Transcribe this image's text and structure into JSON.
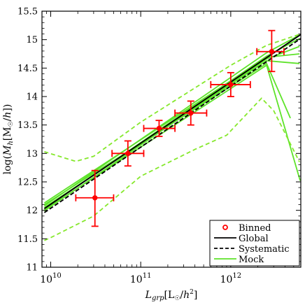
{
  "chart_data": {
    "type": "scatter",
    "xscale": "log",
    "xlabel": "L_grp [L☉/h²]",
    "ylabel": "log(M_h [M☉/h])",
    "xlim": [
      8000000000.0,
      6000000000000.0
    ],
    "ylim": [
      11.0,
      15.5
    ],
    "x_ticks": [
      {
        "value": 10000000000.0,
        "base": "10",
        "exp": "10"
      },
      {
        "value": 100000000000.0,
        "base": "10",
        "exp": "11"
      },
      {
        "value": 1000000000000.0,
        "base": "10",
        "exp": "12"
      }
    ],
    "y_ticks": [
      11,
      11.5,
      12,
      12.5,
      13,
      13.5,
      14,
      14.5,
      15,
      15.5
    ],
    "y_tick_labels": [
      "11",
      "11.5",
      "12",
      "12.5",
      "13",
      "13.5",
      "14",
      "14.5",
      "15",
      "15.5"
    ],
    "grid": false,
    "legend": {
      "placement": "bottom-right",
      "entries": [
        {
          "label": "Binned",
          "style": "red-open-circle"
        },
        {
          "label": "Global",
          "style": "black-solid"
        },
        {
          "label": "Systematic",
          "style": "black-dashed"
        },
        {
          "label": "Mock",
          "style": "green-solid"
        }
      ]
    },
    "colors": {
      "binned": "#ff0000",
      "global": "#000000",
      "systematic": "#000000",
      "mock": "#5ee32a",
      "mock_dashed": "#86e82d"
    },
    "series": [
      {
        "name": "Binned",
        "kind": "points_with_errors",
        "points": [
          {
            "x": 31000000000.0,
            "y": 12.22,
            "xerr": [
              19000000000.0,
              50000000000.0
            ],
            "yerr": [
              11.72,
              12.7
            ]
          },
          {
            "x": 72000000000.0,
            "y": 13.0,
            "xerr": [
              48000000000.0,
              108000000000.0
            ],
            "yerr": [
              12.78,
              13.22
            ]
          },
          {
            "x": 160000000000.0,
            "y": 13.44,
            "xerr": [
              108000000000.0,
              240000000000.0
            ],
            "yerr": [
              13.3,
              13.58
            ]
          },
          {
            "x": 360000000000.0,
            "y": 13.71,
            "xerr": [
              240000000000.0,
              540000000000.0
            ],
            "yerr": [
              13.5,
              13.92
            ]
          },
          {
            "x": 1000000000000.0,
            "y": 14.21,
            "xerr": [
              600000000000.0,
              1650000000000.0
            ],
            "yerr": [
              14.0,
              14.42
            ]
          },
          {
            "x": 2850000000000.0,
            "y": 14.79,
            "xerr": [
              1950000000000.0,
              3900000000000.0
            ],
            "yerr": [
              14.44,
              15.16
            ]
          }
        ]
      },
      {
        "name": "Global",
        "kind": "line",
        "dash": "solid",
        "x": [
          8500000000.0,
          6000000000000.0
        ],
        "y": [
          12.03,
          15.09
        ]
      },
      {
        "name": "Systematic",
        "kind": "line",
        "dash": "dashed",
        "x": [
          8500000000.0,
          6000000000000.0
        ],
        "y": [
          11.96,
          15.02
        ]
      },
      {
        "name": "Mock",
        "kind": "line_bundle",
        "dash": "solid",
        "lines": [
          {
            "x": [
              8500000000.0,
              2500000000000.0,
              5800000000000.0
            ],
            "y": [
              12.03,
              14.71,
              15.02
            ]
          },
          {
            "x": [
              8500000000.0,
              2500000000000.0,
              5800000000000.0
            ],
            "y": [
              12.08,
              14.77,
              15.08
            ]
          },
          {
            "x": [
              8500000000.0,
              2500000000000.0,
              5800000000000.0
            ],
            "y": [
              11.99,
              14.66,
              14.88
            ]
          },
          {
            "x": [
              8500000000.0,
              2500000000000.0,
              5800000000000.0
            ],
            "y": [
              12.13,
              14.69,
              14.75
            ]
          },
          {
            "x": [
              8500000000.0,
              2500000000000.0,
              5800000000000.0
            ],
            "y": [
              12.05,
              14.63,
              14.58
            ]
          },
          {
            "x": [
              8500000000.0,
              2500000000000.0,
              4600000000000.0
            ],
            "y": [
              12.1,
              14.58,
              13.62
            ]
          },
          {
            "x": [
              8500000000.0,
              2500000000000.0,
              5900000000000.0
            ],
            "y": [
              12.01,
              14.55,
              12.52
            ]
          }
        ]
      },
      {
        "name": "",
        "kind": "line",
        "dash": "dashed",
        "x": [
          8500000000.0,
          19000000000.0,
          30000000000.0,
          100000000000.0,
          1000000000000.0,
          2500000000000.0,
          6000000000000.0
        ],
        "y": [
          13.03,
          12.86,
          12.95,
          13.55,
          14.55,
          14.9,
          15.1
        ]
      },
      {
        "name": "",
        "kind": "line",
        "dash": "dashed",
        "x": [
          8500000000.0,
          10000000000.0,
          30000000000.0,
          100000000000.0,
          400000000000.0,
          900000000000.0,
          2200000000000.0,
          3000000000000.0,
          5800000000000.0
        ],
        "y": [
          11.47,
          11.52,
          11.9,
          12.6,
          13.07,
          13.32,
          13.97,
          13.75,
          12.85
        ]
      }
    ]
  }
}
